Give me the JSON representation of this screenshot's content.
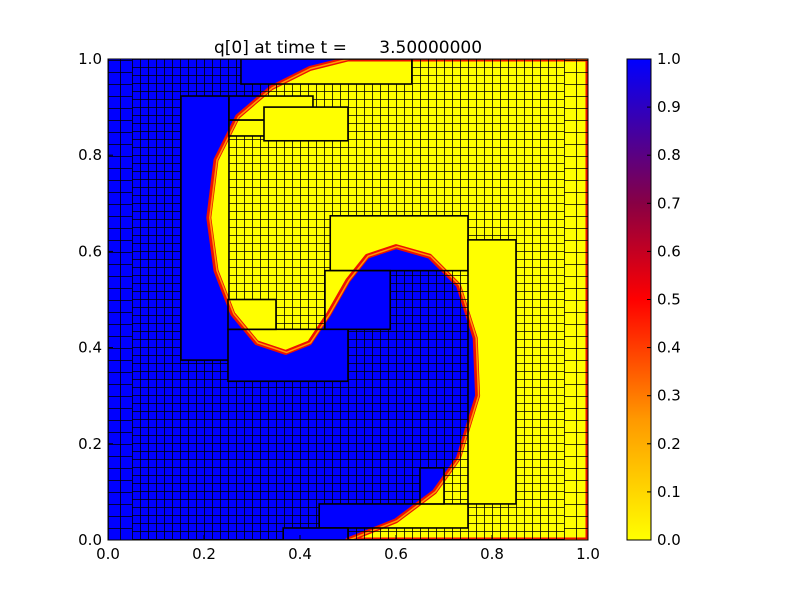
{
  "chart_data": {
    "type": "heatmap",
    "title": "q[0] at time t =      3.50000000",
    "xlabel": "",
    "ylabel": "",
    "xlim": [
      0.0,
      1.0
    ],
    "ylim": [
      0.0,
      1.0
    ],
    "xticks": [
      "0.0",
      "0.2",
      "0.4",
      "0.6",
      "0.8",
      "1.0"
    ],
    "yticks": [
      "0.0",
      "0.2",
      "0.4",
      "0.6",
      "0.8",
      "1.0"
    ],
    "colorbar": {
      "range": [
        0.0,
        1.0
      ],
      "ticks": [
        "0.0",
        "0.1",
        "0.2",
        "0.3",
        "0.4",
        "0.5",
        "0.6",
        "0.7",
        "0.8",
        "0.9",
        "1.0"
      ],
      "colormap": [
        {
          "value": 0.0,
          "color": "#ffff00"
        },
        {
          "value": 0.25,
          "color": "#ff9900"
        },
        {
          "value": 0.5,
          "color": "#ff0000"
        },
        {
          "value": 0.7,
          "color": "#880044"
        },
        {
          "value": 1.0,
          "color": "#0000ff"
        }
      ]
    },
    "field_description_values": {
      "inside_spiral": 0.0,
      "outside_spiral": 1.0
    },
    "grid_lines_shown": true
  }
}
